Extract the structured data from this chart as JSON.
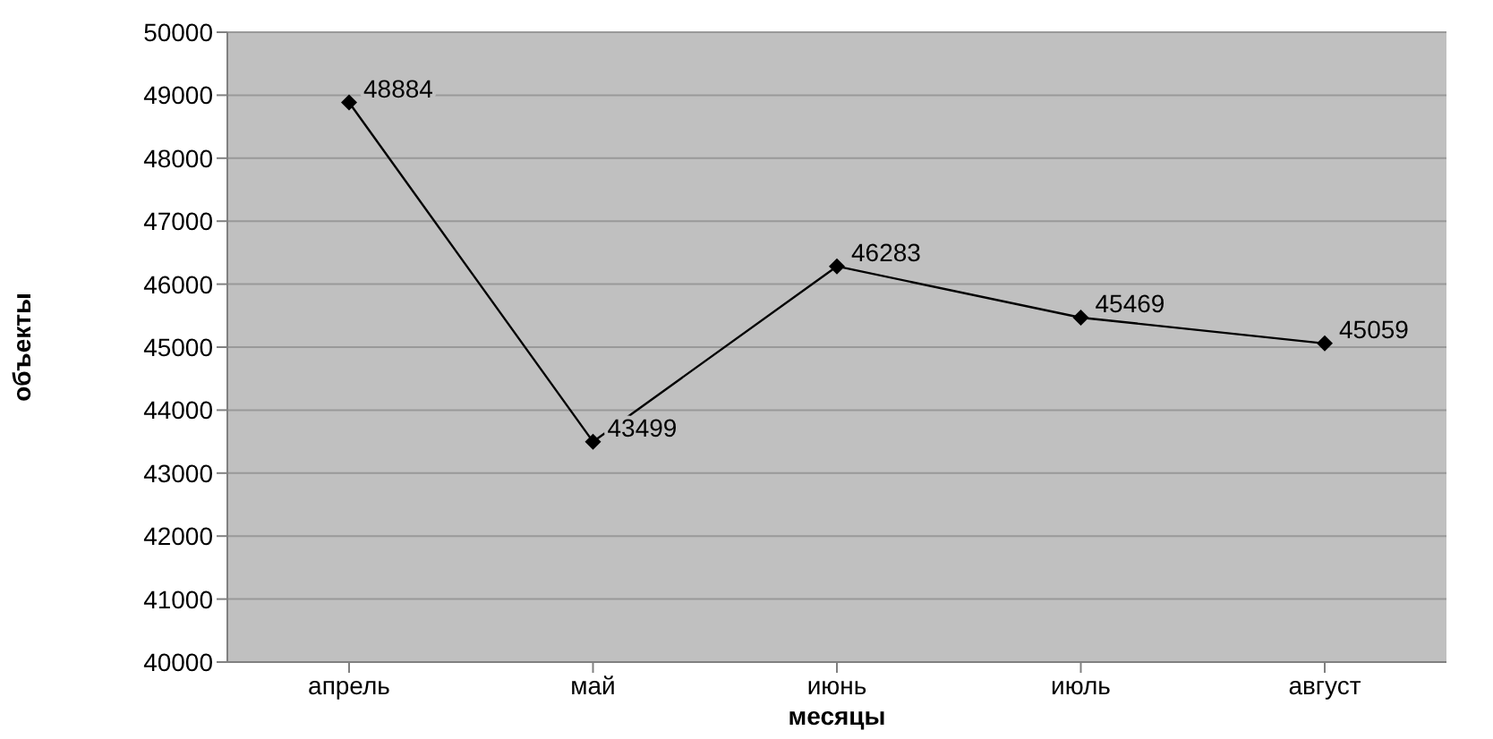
{
  "chart_data": {
    "type": "line",
    "xlabel": "месяцы",
    "ylabel": "объекты",
    "categories": [
      "апрель",
      "май",
      "июнь",
      "июль",
      "август"
    ],
    "series": [
      {
        "color": "#000000",
        "values": [
          48884,
          43499,
          46283,
          45469,
          45059
        ]
      }
    ],
    "ylim": [
      40000,
      50000
    ],
    "yticks": [
      40000,
      41000,
      42000,
      43000,
      44000,
      45000,
      46000,
      47000,
      48000,
      49000,
      50000
    ],
    "grid": "y",
    "marker": "diamond",
    "line_style": "solid",
    "data_labels": true
  }
}
